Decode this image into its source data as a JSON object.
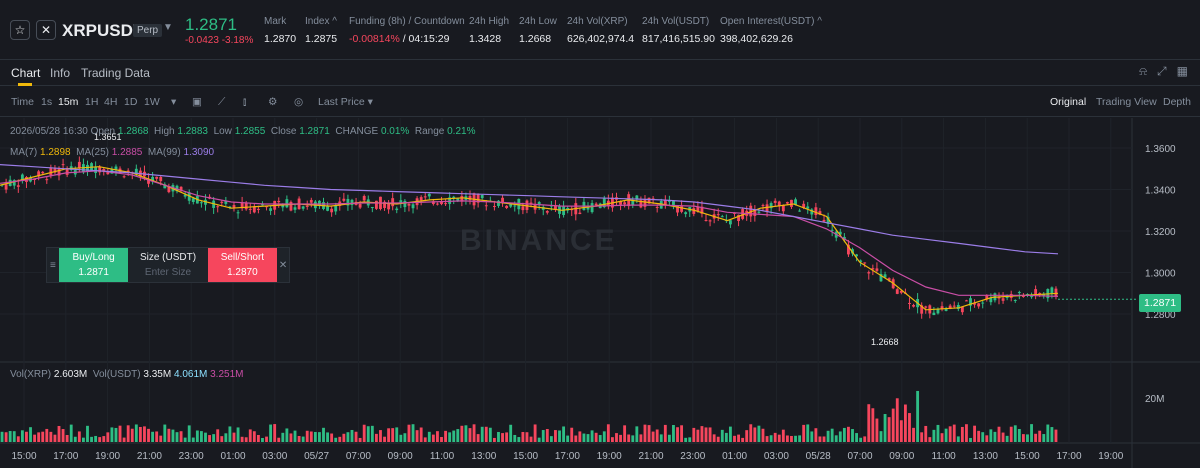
{
  "ticker": {
    "symbol": "XRPUSDT",
    "type_badge": "Perp",
    "last_price": "1.2871",
    "change": "-0.0423 -3.18%",
    "stats": [
      {
        "label": "Mark",
        "value": "1.2870"
      },
      {
        "label": "Index ^",
        "value": "1.2875"
      },
      {
        "label": "Funding (8h) / Countdown",
        "value_red": "-0.00814%",
        "value": " / 04:15:29"
      },
      {
        "label": "24h High",
        "value": "1.3428"
      },
      {
        "label": "24h Low",
        "value": "1.2668"
      },
      {
        "label": "24h Vol(XRP)",
        "value": "626,402,974.4"
      },
      {
        "label": "24h Vol(USDT)",
        "value": "817,416,515.90"
      },
      {
        "label": "Open Interest(USDT) ^",
        "value": "398,402,629.26"
      }
    ]
  },
  "tabs": [
    {
      "label": "Chart"
    },
    {
      "label": "Info"
    },
    {
      "label": "Trading Data"
    }
  ],
  "toolbar": {
    "intervals": [
      "Time",
      "1s",
      "15m",
      "1H",
      "4H",
      "1D",
      "1W"
    ],
    "active_interval": "15m",
    "price_type": "Last Price",
    "views": [
      "Original",
      "Trading View",
      "Depth"
    ],
    "active_view": "Original"
  },
  "chart_info": {
    "date": "2026/05/28 16:30",
    "open_label": "Open",
    "open": "1.2868",
    "high_label": "High",
    "high": "1.2883",
    "low_label": "Low",
    "low": "1.2855",
    "close_label": "Close",
    "close": "1.2871",
    "change_label": "CHANGE",
    "change": "0.01%",
    "range_label": "Range",
    "range": "0.21%",
    "ma7_label": "MA(7)",
    "ma7": "1.2898",
    "ma25_label": "MA(25)",
    "ma25": "1.2885",
    "ma99_label": "MA(99)",
    "ma99": "1.3090",
    "vol_xrp_label": "Vol(XRP)",
    "vol_xrp": "2.603M",
    "vol_usdt_label": "Vol(USDT)",
    "vol_usdt": "3.35M",
    "vol_ma1": "4.061M",
    "vol_ma2": "3.251M"
  },
  "order_widget": {
    "buy_label": "Buy/Long",
    "buy_price": "1.2871",
    "size_label": "Size (USDT)",
    "size_placeholder": "Enter Size",
    "sell_label": "Sell/Short",
    "sell_price": "1.2870"
  },
  "watermark": "BINANCE",
  "current_price_tag": "1.2871",
  "chart_data": {
    "type": "line",
    "price_axis_ticks": [
      "1.3600",
      "1.3400",
      "1.3200",
      "1.3000",
      "1.2800"
    ],
    "volume_axis_ticks": [
      "20M"
    ],
    "time_ticks": [
      "15:00",
      "17:00",
      "19:00",
      "21:00",
      "23:00",
      "01:00",
      "03:00",
      "05/27",
      "07:00",
      "09:00",
      "11:00",
      "13:00",
      "15:00",
      "17:00",
      "19:00",
      "21:00",
      "23:00",
      "01:00",
      "03:00",
      "05/28",
      "07:00",
      "09:00",
      "11:00",
      "13:00",
      "15:00",
      "17:00",
      "19:00"
    ],
    "annotations": {
      "max": "1.3651",
      "min": "1.2668"
    },
    "ylim": [
      1.27,
      1.37
    ],
    "series": [
      {
        "name": "MA(7)",
        "color": "#f0b90b",
        "values": [
          1.342,
          1.346,
          1.35,
          1.351,
          1.348,
          1.342,
          1.335,
          1.331,
          1.332,
          1.333,
          1.332,
          1.334,
          1.333,
          1.335,
          1.336,
          1.334,
          1.332,
          1.33,
          1.332,
          1.335,
          1.333,
          1.33,
          1.325,
          1.331,
          1.333,
          1.327,
          1.305,
          1.295,
          1.282,
          1.283,
          1.288,
          1.289,
          1.29
        ]
      },
      {
        "name": "MA(25)",
        "color": "#c94ea6",
        "values": [
          1.343,
          1.345,
          1.348,
          1.349,
          1.347,
          1.342,
          1.337,
          1.334,
          1.333,
          1.333,
          1.333,
          1.3335,
          1.3335,
          1.334,
          1.3345,
          1.334,
          1.333,
          1.332,
          1.332,
          1.3325,
          1.3325,
          1.332,
          1.329,
          1.328,
          1.327,
          1.321,
          1.312,
          1.301,
          1.293,
          1.289,
          1.289,
          1.289,
          1.2885
        ]
      },
      {
        "name": "MA(99)",
        "color": "#9b7de8",
        "values": [
          1.352,
          1.351,
          1.35,
          1.349,
          1.348,
          1.3465,
          1.345,
          1.3435,
          1.342,
          1.341,
          1.34,
          1.3395,
          1.339,
          1.3385,
          1.338,
          1.3375,
          1.337,
          1.3365,
          1.336,
          1.3355,
          1.335,
          1.334,
          1.332,
          1.33,
          1.327,
          1.324,
          1.321,
          1.318,
          1.316,
          1.314,
          1.312,
          1.31,
          1.309
        ]
      }
    ]
  },
  "colors": {
    "up": "#2ebd85",
    "down": "#f6465d",
    "accent": "#f0b90b"
  }
}
